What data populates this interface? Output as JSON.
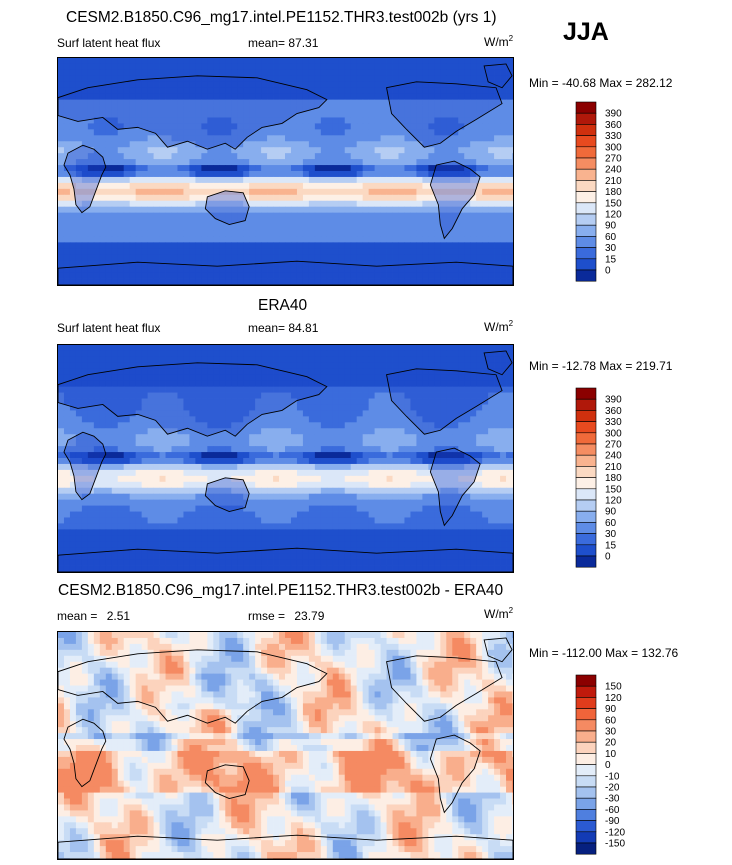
{
  "season": "JJA",
  "chart_data": [
    {
      "type": "heatmap",
      "title": "CESM2.B1850.C96_mg17.intel.PE1152.THR3.test002b (yrs 1)",
      "variable": "Surf latent heat flux",
      "stat_label": "mean=",
      "stat_value": "87.31",
      "units": "W/m",
      "units_sup": "2",
      "minmax": "Min = -40.68 Max = 282.12",
      "min": -40.68,
      "max": 282.12,
      "levels": [
        "390",
        "360",
        "330",
        "300",
        "270",
        "240",
        "210",
        "180",
        "150",
        "120",
        "90",
        "60",
        "30",
        "15",
        "0"
      ],
      "colors": [
        "#8b0000",
        "#b0180a",
        "#d0300e",
        "#e84a1f",
        "#f06a3a",
        "#f58d62",
        "#f9b38f",
        "#fbd9c2",
        "#fdf0e6",
        "#dbe7f8",
        "#b5cdf3",
        "#88aeee",
        "#5e8ce6",
        "#3a6bdc",
        "#1e4fcc",
        "#0a2a9a"
      ]
    },
    {
      "type": "heatmap",
      "title": "ERA40",
      "variable": "Surf latent heat flux",
      "stat_label": "mean=",
      "stat_value": "84.81",
      "units": "W/m",
      "units_sup": "2",
      "minmax": "Min = -12.78 Max = 219.71",
      "min": -12.78,
      "max": 219.71,
      "levels": [
        "390",
        "360",
        "330",
        "300",
        "270",
        "240",
        "210",
        "180",
        "150",
        "120",
        "90",
        "60",
        "30",
        "15",
        "0"
      ],
      "colors": [
        "#8b0000",
        "#b0180a",
        "#d0300e",
        "#e84a1f",
        "#f06a3a",
        "#f58d62",
        "#f9b38f",
        "#fbd9c2",
        "#fdf0e6",
        "#dbe7f8",
        "#b5cdf3",
        "#88aeee",
        "#5e8ce6",
        "#3a6bdc",
        "#1e4fcc",
        "#0a2a9a"
      ]
    },
    {
      "type": "heatmap",
      "title": "CESM2.B1850.C96_mg17.intel.PE1152.THR3.test002b - ERA40",
      "stat_label": "mean =",
      "stat_value": "2.51",
      "rmse_label": "rmse =",
      "rmse_value": "23.79",
      "units": "W/m",
      "units_sup": "2",
      "minmax": "Min = -112.00 Max = 132.76",
      "min": -112.0,
      "max": 132.76,
      "levels": [
        "150",
        "120",
        "90",
        "60",
        "30",
        "20",
        "10",
        "0",
        "-10",
        "-20",
        "-30",
        "-60",
        "-90",
        "-120",
        "-150"
      ],
      "colors": [
        "#8b0000",
        "#c01a0c",
        "#e03c1c",
        "#f0643a",
        "#f58a62",
        "#f9ae8c",
        "#fcd3bd",
        "#fdeee4",
        "#e3edf9",
        "#c8dcf5",
        "#a4c2ef",
        "#7aa3e8",
        "#4f7fdf",
        "#2b5ad2",
        "#133bb5",
        "#06207f"
      ]
    }
  ]
}
